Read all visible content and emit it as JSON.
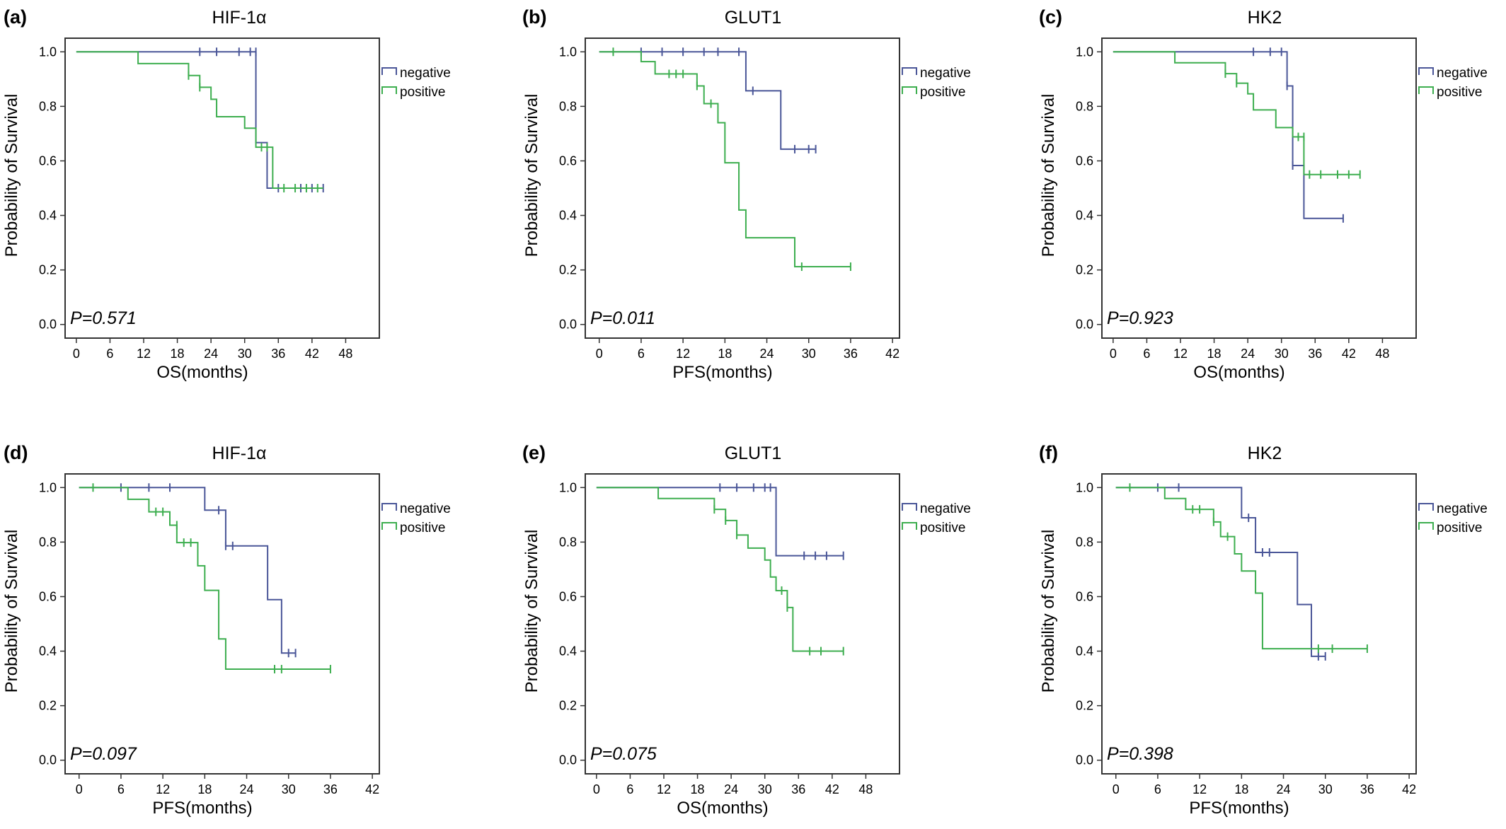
{
  "colors": {
    "negative": "#4a5698",
    "positive": "#3dae4f",
    "frame": "#333333"
  },
  "chart_data": [
    {
      "type": "line",
      "panel_label": "(a)",
      "title": "HIF-1α",
      "xlabel": "OS(months)",
      "ylabel": "Probability of Survival",
      "xticks": [
        0,
        6,
        12,
        18,
        24,
        30,
        36,
        42,
        48
      ],
      "yticks": [
        "0.0",
        "0.2",
        "0.4",
        "0.6",
        "0.8",
        "1.0"
      ],
      "xlim": [
        -2,
        54
      ],
      "ylim": [
        -0.05,
        1.05
      ],
      "p_value": "P=0.571",
      "legend_position": "right",
      "series": [
        {
          "name": "negative",
          "steps": [
            [
              0,
              1.0
            ],
            [
              32,
              0.667
            ],
            [
              34,
              0.5
            ],
            [
              44,
              0.5
            ]
          ],
          "censors": [
            [
              22,
              1.0
            ],
            [
              25,
              1.0
            ],
            [
              29,
              1.0
            ],
            [
              31,
              1.0
            ],
            [
              32,
              1.0
            ],
            [
              36,
              0.5
            ],
            [
              40,
              0.5
            ],
            [
              42,
              0.5
            ],
            [
              44,
              0.5
            ]
          ]
        },
        {
          "name": "positive",
          "steps": [
            [
              0,
              1.0
            ],
            [
              11,
              0.957
            ],
            [
              20,
              0.913
            ],
            [
              22,
              0.87
            ],
            [
              24,
              0.826
            ],
            [
              25,
              0.762
            ],
            [
              28,
              0.762
            ],
            [
              30,
              0.72
            ],
            [
              32,
              0.65
            ],
            [
              35,
              0.5
            ],
            [
              44,
              0.5
            ]
          ],
          "censors": [
            [
              20,
              0.913
            ],
            [
              22,
              0.87
            ],
            [
              33,
              0.65
            ],
            [
              34,
              0.65
            ],
            [
              37,
              0.5
            ],
            [
              39,
              0.5
            ],
            [
              41,
              0.5
            ],
            [
              43,
              0.5
            ]
          ]
        }
      ]
    },
    {
      "type": "line",
      "panel_label": "(b)",
      "title": "GLUT1",
      "xlabel": "PFS(months)",
      "ylabel": "Probability of Survival",
      "xticks": [
        0,
        6,
        12,
        18,
        24,
        30,
        36,
        42
      ],
      "yticks": [
        "0.0",
        "0.2",
        "0.4",
        "0.6",
        "0.8",
        "1.0"
      ],
      "xlim": [
        -2,
        43
      ],
      "ylim": [
        -0.05,
        1.05
      ],
      "p_value": "P=0.011",
      "legend_position": "right",
      "series": [
        {
          "name": "negative",
          "steps": [
            [
              0,
              1.0
            ],
            [
              21,
              0.857
            ],
            [
              26,
              0.643
            ],
            [
              31,
              0.643
            ]
          ],
          "censors": [
            [
              6,
              1.0
            ],
            [
              9,
              1.0
            ],
            [
              12,
              1.0
            ],
            [
              15,
              1.0
            ],
            [
              17,
              1.0
            ],
            [
              20,
              1.0
            ],
            [
              22,
              0.857
            ],
            [
              28,
              0.643
            ],
            [
              30,
              0.643
            ],
            [
              31,
              0.643
            ]
          ]
        },
        {
          "name": "positive",
          "steps": [
            [
              0,
              1.0
            ],
            [
              6,
              0.964
            ],
            [
              8,
              0.919
            ],
            [
              14,
              0.875
            ],
            [
              15,
              0.81
            ],
            [
              17,
              0.74
            ],
            [
              18,
              0.593
            ],
            [
              20,
              0.42
            ],
            [
              21,
              0.318
            ],
            [
              28,
              0.212
            ],
            [
              36,
              0.212
            ]
          ],
          "censors": [
            [
              2,
              1.0
            ],
            [
              10,
              0.919
            ],
            [
              11,
              0.919
            ],
            [
              12,
              0.919
            ],
            [
              14,
              0.875
            ],
            [
              16,
              0.81
            ],
            [
              29,
              0.212
            ],
            [
              36,
              0.212
            ]
          ]
        }
      ]
    },
    {
      "type": "line",
      "panel_label": "(c)",
      "title": "HK2",
      "xlabel": "OS(months)",
      "ylabel": "Probability of Survival",
      "xticks": [
        0,
        6,
        12,
        18,
        24,
        30,
        36,
        42,
        48
      ],
      "yticks": [
        "0.0",
        "0.2",
        "0.4",
        "0.6",
        "0.8",
        "1.0"
      ],
      "xlim": [
        -2,
        54
      ],
      "ylim": [
        -0.05,
        1.05
      ],
      "p_value": "P=0.923",
      "legend_position": "right",
      "series": [
        {
          "name": "negative",
          "steps": [
            [
              0,
              1.0
            ],
            [
              31,
              0.875
            ],
            [
              32,
              0.583
            ],
            [
              34,
              0.389
            ],
            [
              41,
              0.389
            ]
          ],
          "censors": [
            [
              25,
              1.0
            ],
            [
              28,
              1.0
            ],
            [
              30,
              1.0
            ],
            [
              31,
              0.875
            ],
            [
              32,
              0.583
            ],
            [
              41,
              0.389
            ]
          ]
        },
        {
          "name": "positive",
          "steps": [
            [
              0,
              1.0
            ],
            [
              11,
              0.96
            ],
            [
              20,
              0.92
            ],
            [
              22,
              0.885
            ],
            [
              24,
              0.846
            ],
            [
              25,
              0.787
            ],
            [
              29,
              0.722
            ],
            [
              32,
              0.688
            ],
            [
              34,
              0.55
            ],
            [
              44,
              0.55
            ]
          ],
          "censors": [
            [
              20,
              0.92
            ],
            [
              22,
              0.885
            ],
            [
              33,
              0.688
            ],
            [
              34,
              0.688
            ],
            [
              35,
              0.55
            ],
            [
              37,
              0.55
            ],
            [
              40,
              0.55
            ],
            [
              42,
              0.55
            ],
            [
              44,
              0.55
            ]
          ]
        }
      ]
    },
    {
      "type": "line",
      "panel_label": "(d)",
      "title": "HIF-1α",
      "xlabel": "PFS(months)",
      "ylabel": "Probability of Survival",
      "xticks": [
        0,
        6,
        12,
        18,
        24,
        30,
        36,
        42
      ],
      "yticks": [
        "0.0",
        "0.2",
        "0.4",
        "0.6",
        "0.8",
        "1.0"
      ],
      "xlim": [
        -2,
        43
      ],
      "ylim": [
        -0.05,
        1.05
      ],
      "p_value": "P=0.097",
      "legend_position": "right",
      "series": [
        {
          "name": "negative",
          "steps": [
            [
              0,
              1.0
            ],
            [
              18,
              0.917
            ],
            [
              21,
              0.786
            ],
            [
              27,
              0.589
            ],
            [
              29,
              0.393
            ],
            [
              31,
              0.393
            ]
          ],
          "censors": [
            [
              6,
              1.0
            ],
            [
              10,
              1.0
            ],
            [
              13,
              1.0
            ],
            [
              20,
              0.917
            ],
            [
              21,
              0.786
            ],
            [
              22,
              0.786
            ],
            [
              30,
              0.393
            ],
            [
              31,
              0.393
            ]
          ]
        },
        {
          "name": "positive",
          "steps": [
            [
              0,
              1.0
            ],
            [
              7,
              0.957
            ],
            [
              10,
              0.911
            ],
            [
              13,
              0.862
            ],
            [
              14,
              0.798
            ],
            [
              17,
              0.713
            ],
            [
              18,
              0.623
            ],
            [
              20,
              0.445
            ],
            [
              21,
              0.334
            ],
            [
              36,
              0.334
            ]
          ],
          "censors": [
            [
              2,
              1.0
            ],
            [
              11,
              0.911
            ],
            [
              12,
              0.911
            ],
            [
              14,
              0.862
            ],
            [
              15,
              0.798
            ],
            [
              16,
              0.798
            ],
            [
              28,
              0.334
            ],
            [
              29,
              0.334
            ],
            [
              36,
              0.334
            ]
          ]
        }
      ]
    },
    {
      "type": "line",
      "panel_label": "(e)",
      "title": "GLUT1",
      "xlabel": "OS(months)",
      "ylabel": "Probability of Survival",
      "xticks": [
        0,
        6,
        12,
        18,
        24,
        30,
        36,
        42,
        48
      ],
      "yticks": [
        "0.0",
        "0.2",
        "0.4",
        "0.6",
        "0.8",
        "1.0"
      ],
      "xlim": [
        -2,
        54
      ],
      "ylim": [
        -0.05,
        1.05
      ],
      "p_value": "P=0.075",
      "legend_position": "right",
      "series": [
        {
          "name": "negative",
          "steps": [
            [
              0,
              1.0
            ],
            [
              32,
              0.75
            ],
            [
              44,
              0.75
            ]
          ],
          "censors": [
            [
              22,
              1.0
            ],
            [
              25,
              1.0
            ],
            [
              28,
              1.0
            ],
            [
              30,
              1.0
            ],
            [
              31,
              1.0
            ],
            [
              37,
              0.75
            ],
            [
              39,
              0.75
            ],
            [
              41,
              0.75
            ],
            [
              44,
              0.75
            ]
          ]
        },
        {
          "name": "positive",
          "steps": [
            [
              0,
              1.0
            ],
            [
              11,
              0.96
            ],
            [
              21,
              0.92
            ],
            [
              23,
              0.879
            ],
            [
              25,
              0.826
            ],
            [
              27,
              0.778
            ],
            [
              30,
              0.734
            ],
            [
              31,
              0.672
            ],
            [
              32,
              0.622
            ],
            [
              34,
              0.56
            ],
            [
              35,
              0.4
            ],
            [
              44,
              0.4
            ]
          ],
          "censors": [
            [
              21,
              0.92
            ],
            [
              23,
              0.879
            ],
            [
              25,
              0.826
            ],
            [
              33,
              0.622
            ],
            [
              34,
              0.56
            ],
            [
              38,
              0.4
            ],
            [
              40,
              0.4
            ],
            [
              44,
              0.4
            ]
          ]
        }
      ]
    },
    {
      "type": "line",
      "panel_label": "(f)",
      "title": "HK2",
      "xlabel": "PFS(months)",
      "ylabel": "Probability of Survival",
      "xticks": [
        0,
        6,
        12,
        18,
        24,
        30,
        36,
        42
      ],
      "yticks": [
        "0.0",
        "0.2",
        "0.4",
        "0.6",
        "0.8",
        "1.0"
      ],
      "xlim": [
        -2,
        43
      ],
      "ylim": [
        -0.05,
        1.05
      ],
      "p_value": "P=0.398",
      "legend_position": "right",
      "series": [
        {
          "name": "negative",
          "steps": [
            [
              0,
              1.0
            ],
            [
              18,
              0.889
            ],
            [
              20,
              0.762
            ],
            [
              26,
              0.571
            ],
            [
              28,
              0.381
            ],
            [
              30,
              0.381
            ]
          ],
          "censors": [
            [
              6,
              1.0
            ],
            [
              9,
              1.0
            ],
            [
              19,
              0.889
            ],
            [
              21,
              0.762
            ],
            [
              22,
              0.762
            ],
            [
              29,
              0.381
            ],
            [
              30,
              0.381
            ]
          ]
        },
        {
          "name": "positive",
          "steps": [
            [
              0,
              1.0
            ],
            [
              7,
              0.96
            ],
            [
              10,
              0.92
            ],
            [
              14,
              0.874
            ],
            [
              15,
              0.82
            ],
            [
              17,
              0.757
            ],
            [
              18,
              0.694
            ],
            [
              20,
              0.613
            ],
            [
              21,
              0.409
            ],
            [
              36,
              0.409
            ]
          ],
          "censors": [
            [
              2,
              1.0
            ],
            [
              11,
              0.92
            ],
            [
              12,
              0.92
            ],
            [
              14,
              0.874
            ],
            [
              16,
              0.82
            ],
            [
              29,
              0.409
            ],
            [
              31,
              0.409
            ],
            [
              36,
              0.409
            ]
          ]
        }
      ]
    }
  ]
}
